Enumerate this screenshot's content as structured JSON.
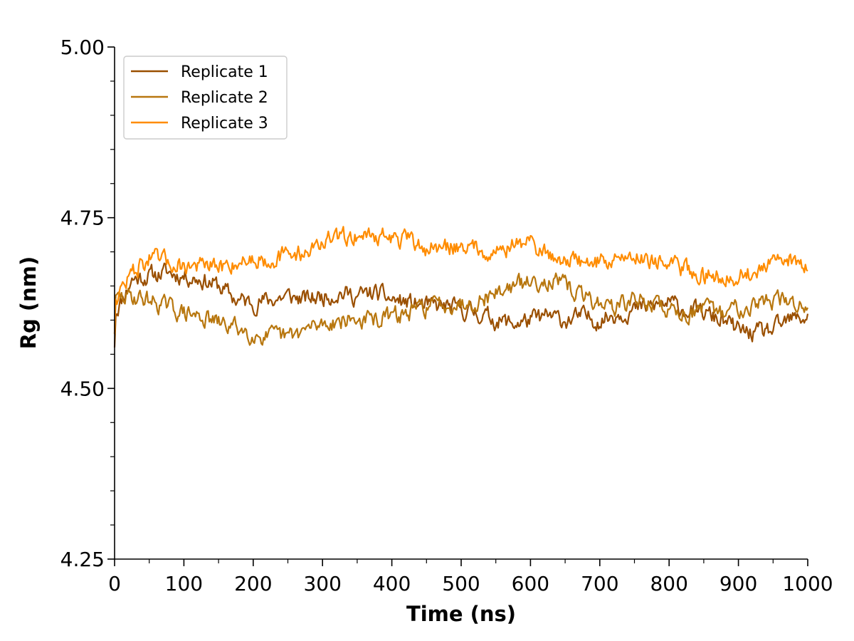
{
  "chart_data": {
    "type": "line",
    "title": "",
    "xlabel": "Time (ns)",
    "ylabel": "Rg (nm)",
    "xlim": [
      0,
      1000
    ],
    "ylim": [
      4.25,
      5.0
    ],
    "x_ticks": [
      "0",
      "100",
      "200",
      "300",
      "400",
      "500",
      "600",
      "700",
      "800",
      "900",
      "1000"
    ],
    "y_ticks": [
      "4.25",
      "4.50",
      "4.75",
      "5.00"
    ],
    "grid": false,
    "legend_position": "top-left",
    "x": [
      0,
      25,
      50,
      75,
      100,
      125,
      150,
      175,
      200,
      225,
      250,
      275,
      300,
      325,
      350,
      375,
      400,
      425,
      450,
      475,
      500,
      525,
      550,
      575,
      600,
      625,
      650,
      675,
      700,
      725,
      750,
      775,
      800,
      825,
      850,
      875,
      900,
      925,
      950,
      975,
      1000
    ],
    "series": [
      {
        "name": "Replicate 1",
        "color": "#9a4f00",
        "values": [
          4.61,
          4.66,
          4.665,
          4.67,
          4.665,
          4.66,
          4.65,
          4.63,
          4.625,
          4.63,
          4.635,
          4.63,
          4.635,
          4.64,
          4.635,
          4.64,
          4.63,
          4.625,
          4.62,
          4.62,
          4.615,
          4.61,
          4.6,
          4.595,
          4.6,
          4.605,
          4.6,
          4.605,
          4.6,
          4.61,
          4.615,
          4.62,
          4.625,
          4.615,
          4.61,
          4.6,
          4.585,
          4.58,
          4.585,
          4.6,
          4.605
        ]
      },
      {
        "name": "Replicate 2",
        "color": "#b8770f",
        "values": [
          4.63,
          4.635,
          4.63,
          4.62,
          4.61,
          4.605,
          4.595,
          4.59,
          4.58,
          4.575,
          4.575,
          4.585,
          4.595,
          4.6,
          4.6,
          4.6,
          4.605,
          4.61,
          4.62,
          4.625,
          4.625,
          4.63,
          4.64,
          4.65,
          4.655,
          4.66,
          4.65,
          4.635,
          4.625,
          4.62,
          4.63,
          4.625,
          4.615,
          4.61,
          4.615,
          4.61,
          4.62,
          4.625,
          4.63,
          4.625,
          4.62
        ]
      },
      {
        "name": "Replicate 3",
        "color": "#ff8c00",
        "values": [
          4.63,
          4.67,
          4.69,
          4.685,
          4.68,
          4.68,
          4.675,
          4.685,
          4.69,
          4.69,
          4.695,
          4.7,
          4.715,
          4.72,
          4.725,
          4.725,
          4.72,
          4.715,
          4.705,
          4.705,
          4.71,
          4.705,
          4.7,
          4.71,
          4.715,
          4.695,
          4.69,
          4.685,
          4.685,
          4.69,
          4.695,
          4.69,
          4.68,
          4.675,
          4.665,
          4.665,
          4.665,
          4.67,
          4.68,
          4.69,
          4.68
        ]
      }
    ]
  }
}
